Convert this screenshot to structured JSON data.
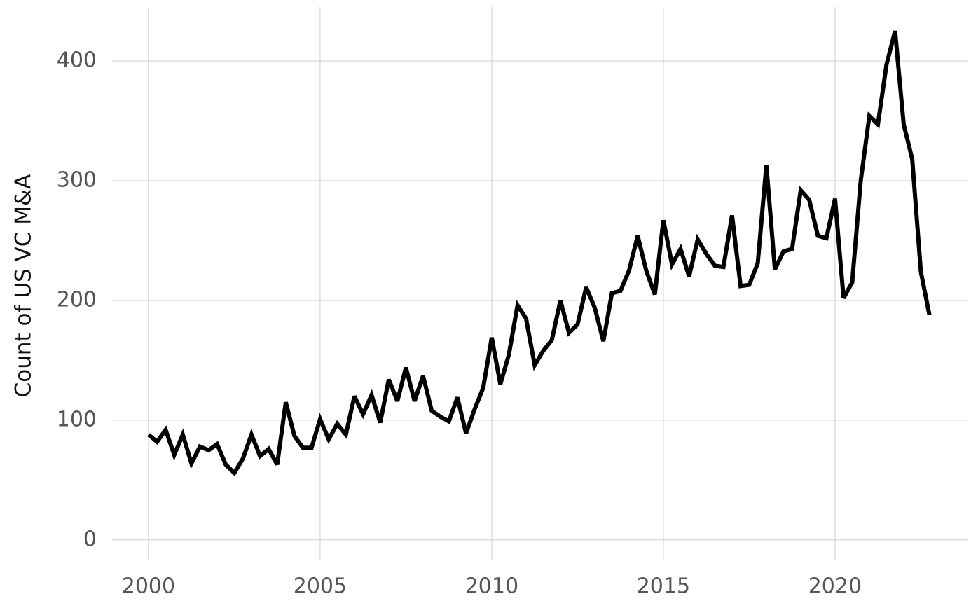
{
  "chart_data": {
    "type": "line",
    "y_label": "Count of US VC M&A",
    "x": [
      2000,
      2000.25,
      2000.5,
      2000.75,
      2001,
      2001.25,
      2001.5,
      2001.75,
      2002,
      2002.25,
      2002.5,
      2002.75,
      2003,
      2003.25,
      2003.5,
      2003.75,
      2004,
      2004.25,
      2004.5,
      2004.75,
      2005,
      2005.25,
      2005.5,
      2005.75,
      2006,
      2006.25,
      2006.5,
      2006.75,
      2007,
      2007.25,
      2007.5,
      2007.75,
      2008,
      2008.25,
      2008.5,
      2008.75,
      2009,
      2009.25,
      2009.5,
      2009.75,
      2010,
      2010.25,
      2010.5,
      2010.75,
      2011,
      2011.25,
      2011.5,
      2011.75,
      2012,
      2012.25,
      2012.5,
      2012.75,
      2013,
      2013.25,
      2013.5,
      2013.75,
      2014,
      2014.25,
      2014.5,
      2014.75,
      2015,
      2015.25,
      2015.5,
      2015.75,
      2016,
      2016.25,
      2016.5,
      2016.75,
      2017,
      2017.25,
      2017.5,
      2017.75,
      2018,
      2018.25,
      2018.5,
      2018.75,
      2019,
      2019.25,
      2019.5,
      2019.75,
      2020,
      2020.25,
      2020.5,
      2020.75,
      2021,
      2021.25,
      2021.5,
      2021.75,
      2022,
      2022.25,
      2022.5,
      2022.75
    ],
    "series": [
      {
        "color": "#000000",
        "values": [
          88,
          82,
          92,
          71,
          88,
          64,
          78,
          75,
          80,
          63,
          56,
          68,
          88,
          70,
          76,
          63,
          115,
          87,
          77,
          77,
          101,
          84,
          97,
          88,
          120,
          105,
          121,
          98,
          134,
          116,
          144,
          116,
          137,
          108,
          103,
          99,
          119,
          89,
          109,
          127,
          169,
          130,
          155,
          196,
          185,
          146,
          158,
          167,
          200,
          173,
          180,
          211,
          194,
          166,
          206,
          208,
          225,
          254,
          225,
          205,
          267,
          230,
          243,
          220,
          251,
          239,
          229,
          228,
          271,
          212,
          213,
          231,
          313,
          226,
          241,
          243,
          292,
          284,
          254,
          252,
          285,
          202,
          215,
          300,
          354,
          347,
          397,
          425,
          347,
          318,
          224,
          188
        ]
      }
    ],
    "xlim": [
      1998.94,
      2023.88
    ],
    "ylim": [
      -17,
      445
    ],
    "xticks": [
      2000,
      2005,
      2010,
      2015,
      2020
    ],
    "yticks": [
      0,
      100,
      200,
      300,
      400
    ],
    "grid": true
  }
}
